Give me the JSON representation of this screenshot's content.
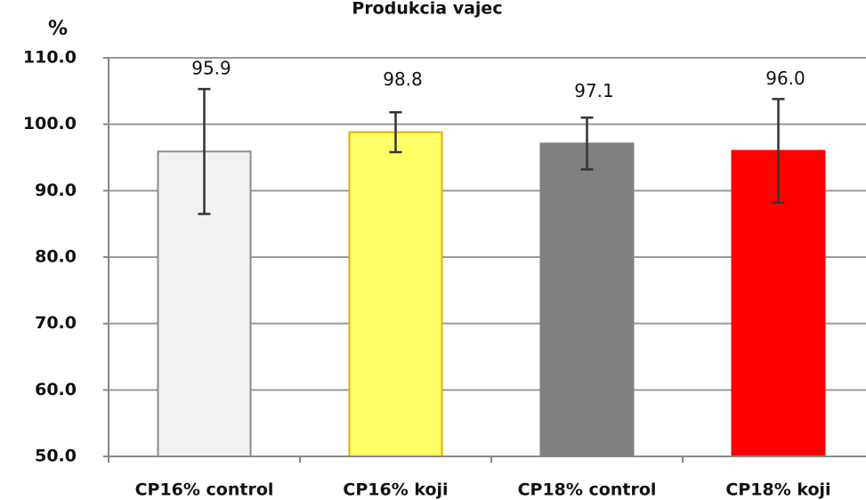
{
  "chart_data": {
    "type": "bar",
    "title": "Produkcia vajec",
    "y_label": "%",
    "categories": [
      "CP16% control",
      "CP16% koji",
      "CP18% control",
      "CP18% koji"
    ],
    "values": [
      95.9,
      98.8,
      97.1,
      96.0
    ],
    "value_labels": [
      "95.9",
      "98.8",
      "97.1",
      "96.0"
    ],
    "errors": [
      9.4,
      3.0,
      3.9,
      7.8
    ],
    "colors": [
      "#f2f2f2",
      "#ffff66",
      "#808080",
      "#ff0000"
    ],
    "ylim": [
      50,
      110
    ],
    "yticks": [
      {
        "value": 50,
        "label": "50.0"
      },
      {
        "value": 60,
        "label": "60.0"
      },
      {
        "value": 70,
        "label": "70.0"
      },
      {
        "value": 80,
        "label": "80.0"
      },
      {
        "value": 90,
        "label": "90.0"
      },
      {
        "value": 100,
        "label": "100.0"
      },
      {
        "value": 110,
        "label": "110.0"
      }
    ],
    "grid": true
  }
}
